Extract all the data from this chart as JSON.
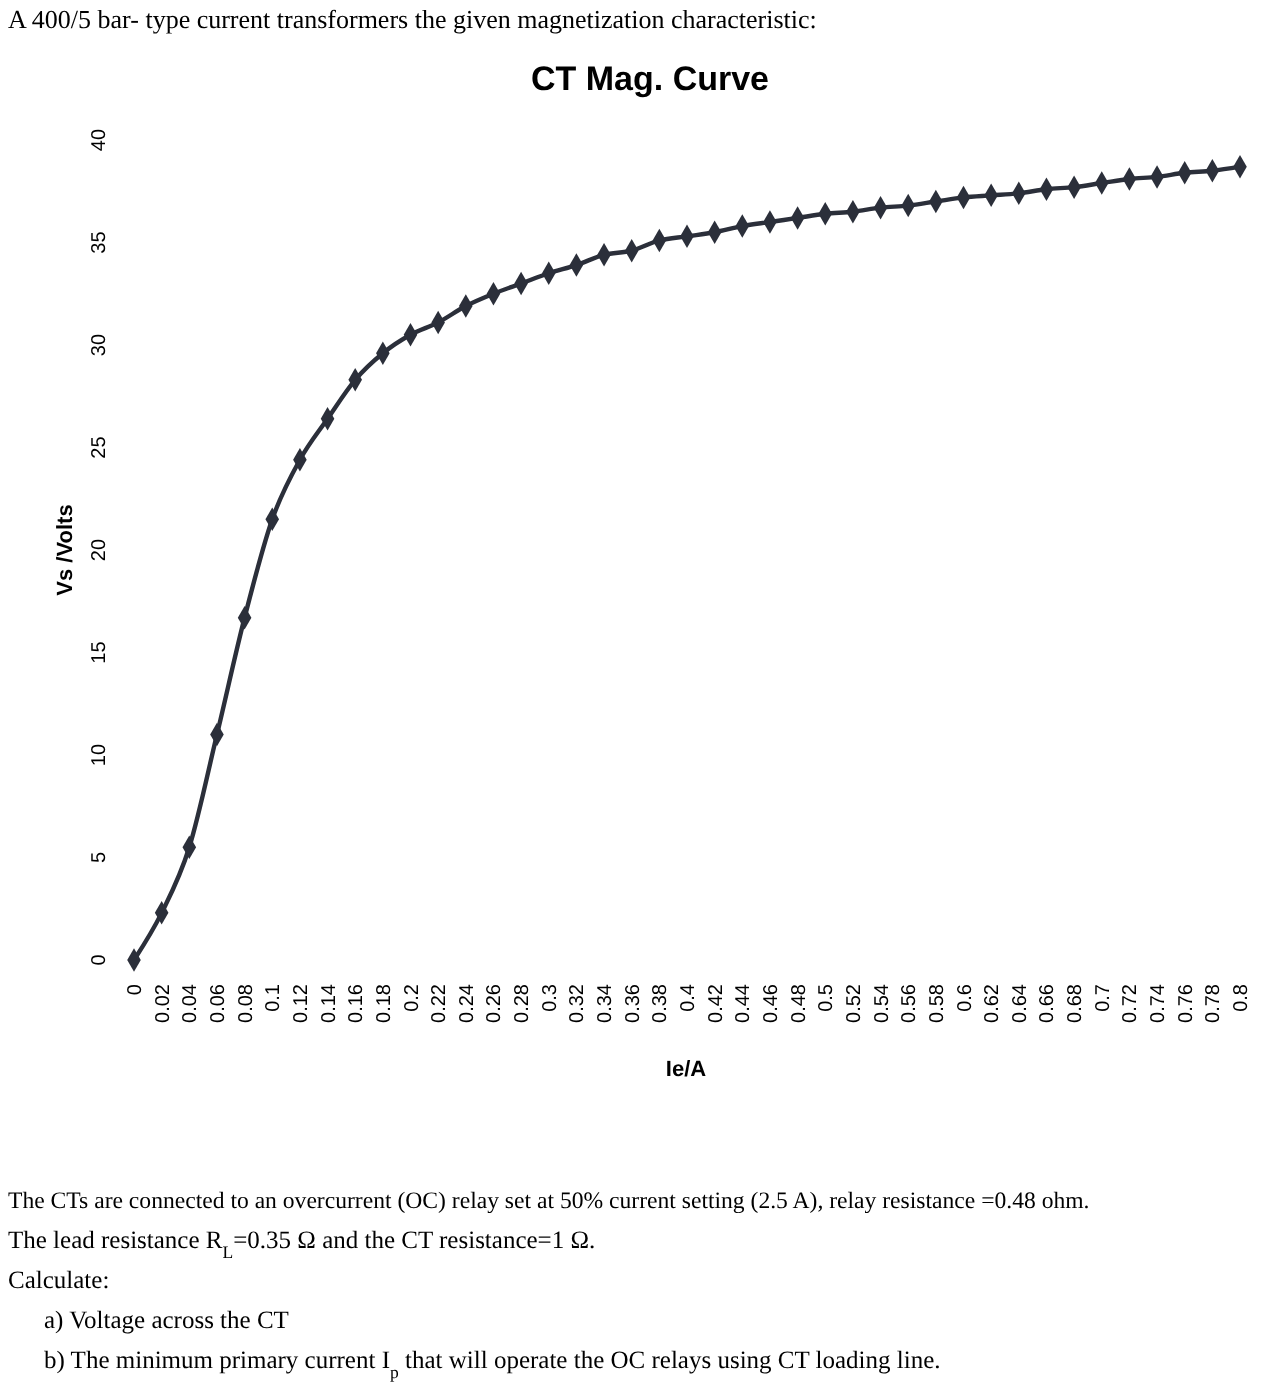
{
  "chart_data": {
    "type": "line",
    "subtitle": "A 400/5 bar- type current transformers the given magnetization characteristic:",
    "title": "CT Mag. Curve",
    "xlabel": "Ie/A",
    "ylabel": "Vs /Volts",
    "categories": [
      "0",
      "0.02",
      "0.04",
      "0.06",
      "0.08",
      "0.1",
      "0.12",
      "0.14",
      "0.16",
      "0.18",
      "0.2",
      "0.22",
      "0.24",
      "0.26",
      "0.28",
      "0.3",
      "0.32",
      "0.34",
      "0.36",
      "0.38",
      "0.4",
      "0.42",
      "0.44",
      "0.46",
      "0.48",
      "0.5",
      "0.52",
      "0.54",
      "0.56",
      "0.58",
      "0.6",
      "0.62",
      "0.64",
      "0.66",
      "0.68",
      "0.7",
      "0.72",
      "0.74",
      "0.76",
      "0.78",
      "0.8"
    ],
    "series": [
      {
        "color": "#2b2f3a",
        "values": [
          0,
          2.3,
          5.5,
          11.0,
          16.7,
          21.5,
          24.4,
          26.4,
          28.3,
          29.6,
          30.5,
          31.1,
          31.9,
          32.5,
          33.0,
          33.5,
          33.9,
          34.4,
          34.6,
          35.1,
          35.3,
          35.5,
          35.8,
          36.0,
          36.2,
          36.4,
          36.5,
          36.7,
          36.8,
          37.0,
          37.2,
          37.3,
          37.4,
          37.6,
          37.7,
          37.9,
          38.1,
          38.2,
          38.4,
          38.5,
          38.7
        ]
      }
    ],
    "ylim": [
      0,
      40
    ],
    "yticks": [
      0,
      5,
      10,
      15,
      20,
      25,
      30,
      35,
      40
    ],
    "marker": "diamond",
    "line_style": "solid",
    "annotations": [
      "The CTs are connected to an overcurrent (OC) relay set at 50% current setting (2.5 A), relay resistance =0.48 ohm.",
      "The lead resistance R$_{L}$=0.35 Ω and the CT resistance=1 Ω.",
      "Calculate:",
      "a)  Voltage across the CT",
      "b)  The minimum primary current I$_{p}$ that will operate the OC relays using CT loading line."
    ]
  }
}
